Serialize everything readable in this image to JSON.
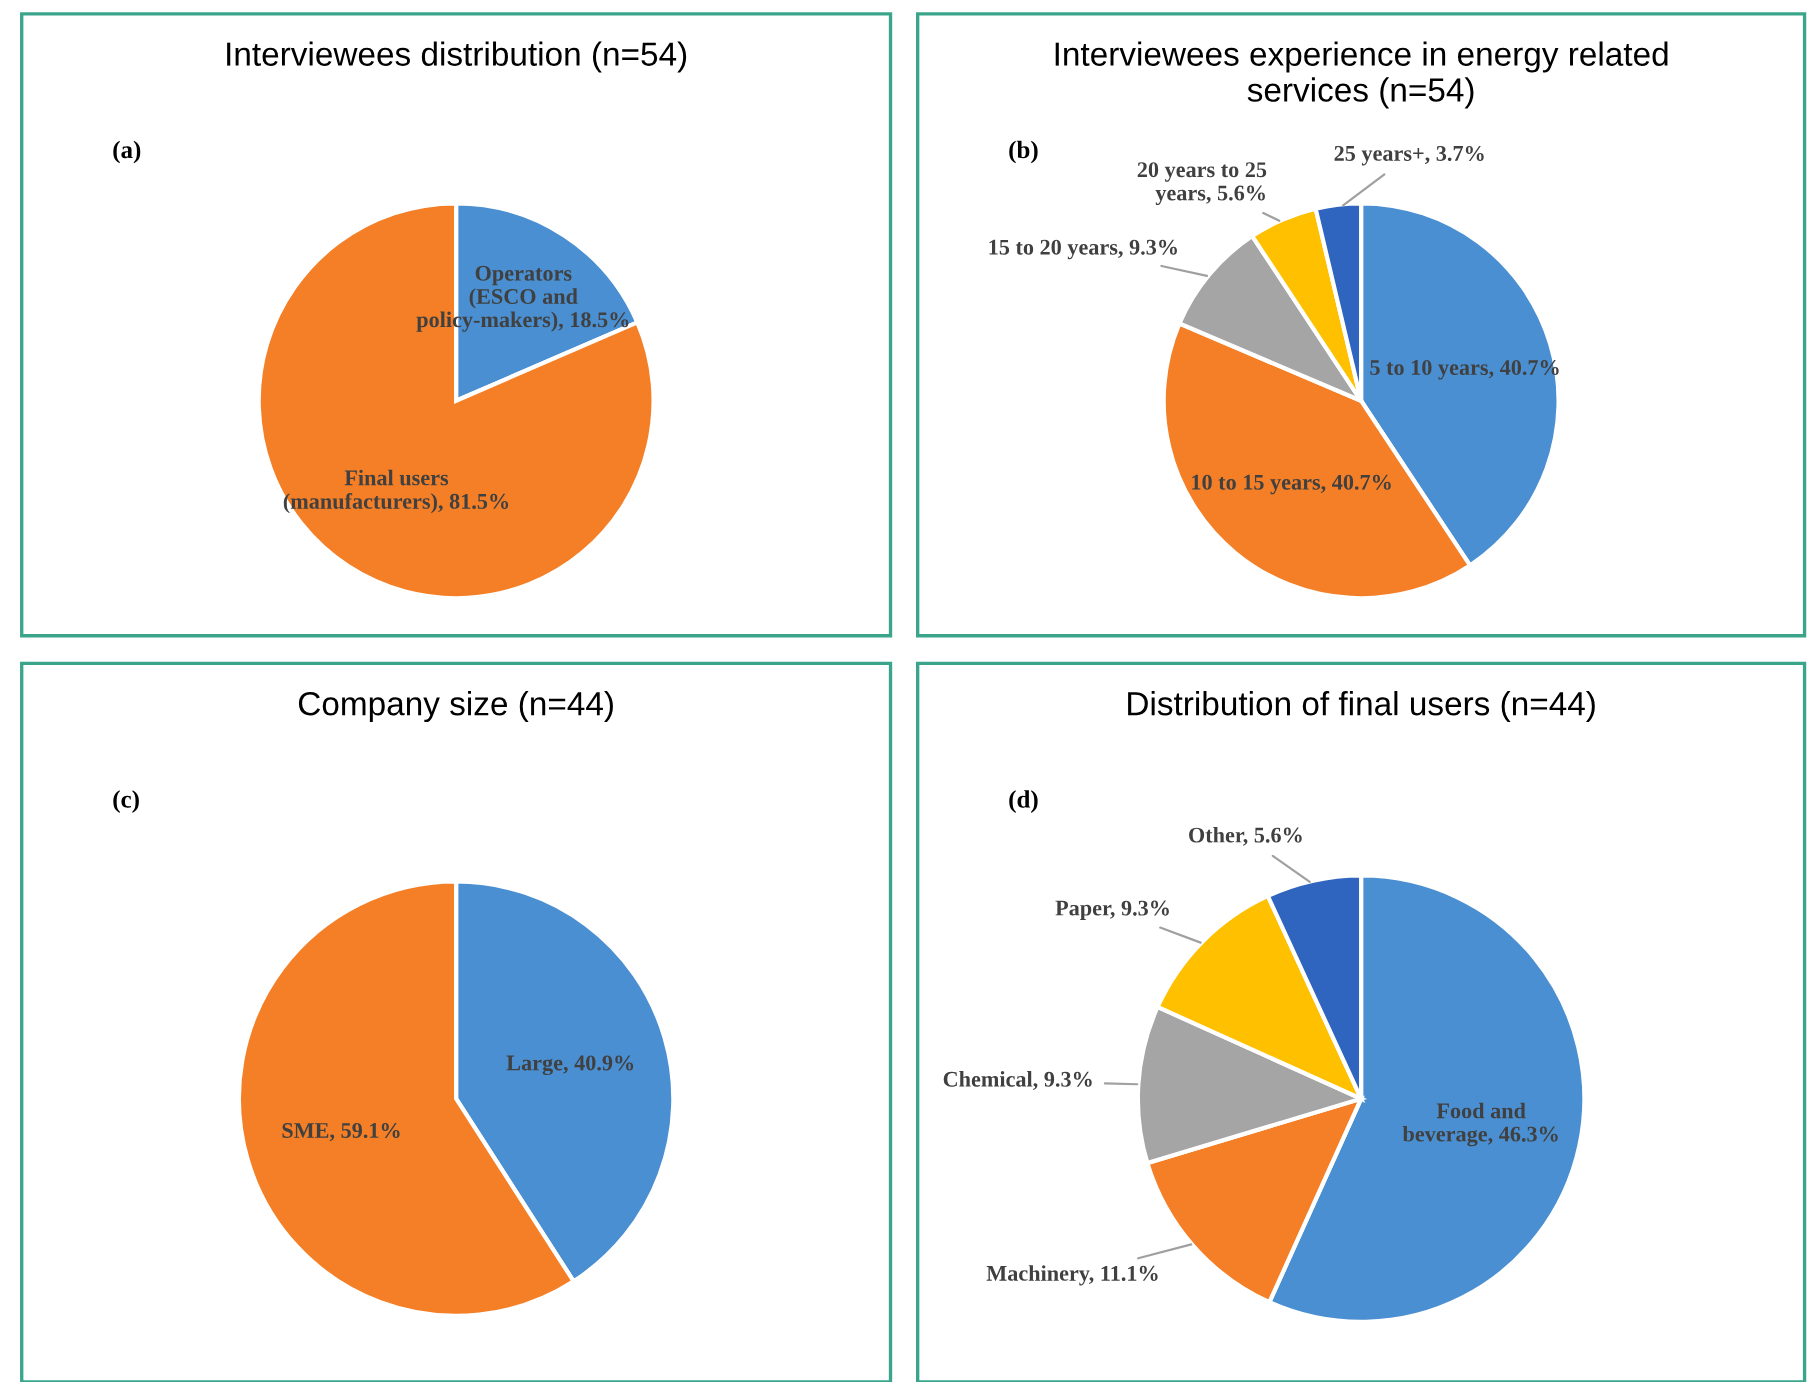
{
  "chart_data": [
    {
      "type": "pie",
      "title": "Interviewees distribution (n=54)",
      "annotations": [
        "(a)"
      ],
      "categories": [
        "Operators\n(ESCO and\npolicy-makers)",
        "Final users\n(manufacturers)"
      ],
      "values": [
        18.5,
        81.5
      ],
      "value_labels": [
        "18.5%",
        "81.5%"
      ],
      "colors": [
        "#4a8fd1",
        "#f47f26"
      ],
      "legend": false
    },
    {
      "type": "pie",
      "title": "Interviewees experience in energy related\nservices (n=54)",
      "annotations": [
        "(b)"
      ],
      "categories": [
        "5 to 10 years",
        "10 to 15 years",
        "15 to 20 years",
        "20 years to 25\nyears",
        "25 years+"
      ],
      "values": [
        40.7,
        40.7,
        9.3,
        5.6,
        3.7
      ],
      "value_labels": [
        "40.7%",
        "40.7%",
        "9.3%",
        "5.6%",
        "3.7%"
      ],
      "colors": [
        "#4a8fd1",
        "#f47f26",
        "#a5a5a5",
        "#ffc000",
        "#2f65bf"
      ],
      "legend": false
    },
    {
      "type": "pie",
      "title": "Company size (n=44)",
      "annotations": [
        "(c)"
      ],
      "categories": [
        "Large",
        "SME"
      ],
      "values": [
        40.9,
        59.1
      ],
      "value_labels": [
        "40.9%",
        "59.1%"
      ],
      "colors": [
        "#4a8fd1",
        "#f47f26"
      ],
      "legend": false
    },
    {
      "type": "pie",
      "title": "Distribution of final users (n=44)",
      "annotations": [
        "(d)"
      ],
      "categories": [
        "Food and\nbeverage",
        "Machinery",
        "Chemical",
        "Paper",
        "Other"
      ],
      "values": [
        46.3,
        11.1,
        9.3,
        9.3,
        5.6
      ],
      "value_labels": [
        "46.3%",
        "11.1%",
        "9.3%",
        "9.3%",
        "5.6%"
      ],
      "colors": [
        "#4a8fd1",
        "#f47f26",
        "#a5a5a5",
        "#ffc000",
        "#2f65bf"
      ],
      "legend": false
    }
  ]
}
